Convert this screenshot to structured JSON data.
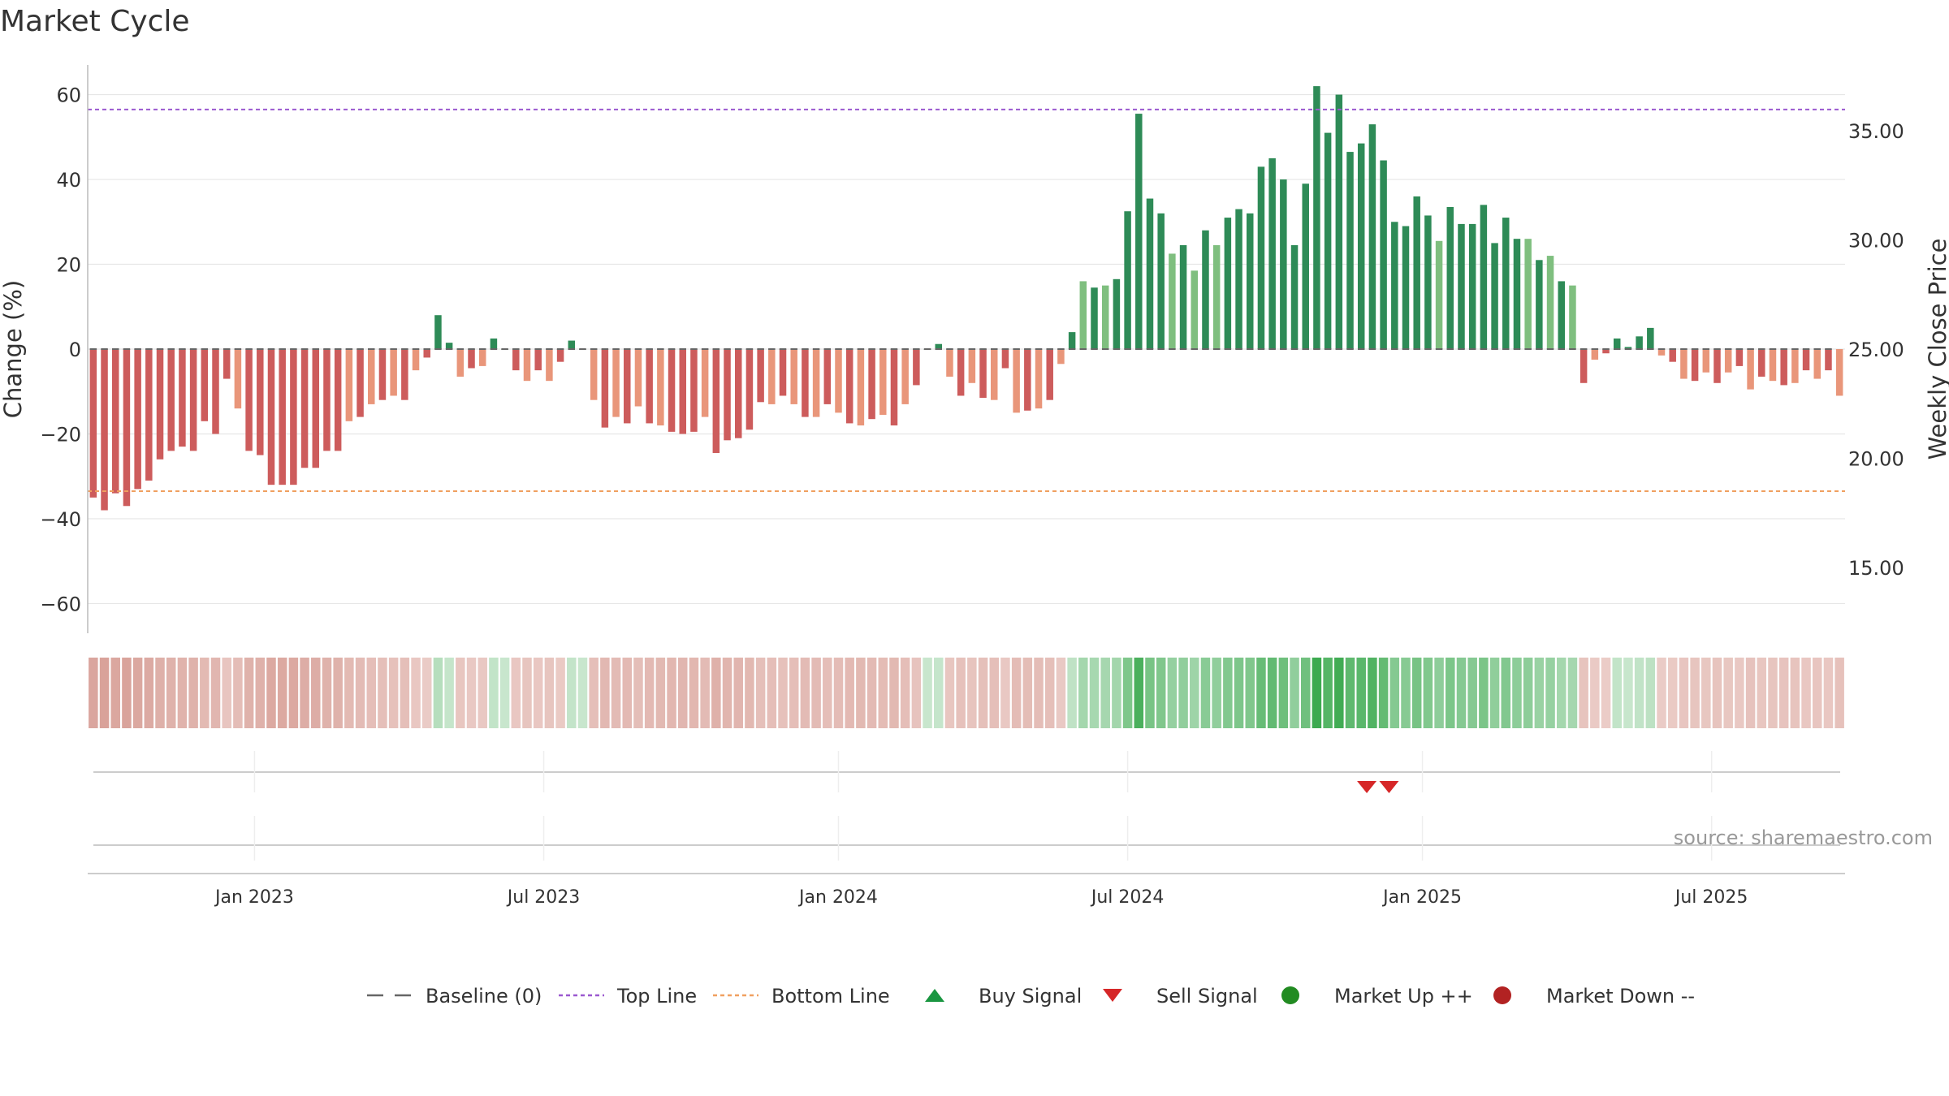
{
  "title": "Market Cycle",
  "source": "source: sharemaestro.com",
  "colors": {
    "strong_up": "#2e8b57",
    "weak_up": "#7fbf7f",
    "strong_down": "#cd5c5c",
    "weak_down": "#e9967a",
    "top_line": "#9b59d0",
    "bottom_line": "#f0a060",
    "baseline": "#666666",
    "buy": "#1a9641",
    "sell": "#d62728",
    "market_up": "#228b22",
    "market_down": "#b22222"
  },
  "chart_data": {
    "type": "bar",
    "title": "Market Cycle",
    "y_left": {
      "label": "Change (%)",
      "lim": [
        -67,
        67
      ],
      "ticks": [
        60,
        40,
        20,
        0,
        -20,
        -40,
        -60
      ],
      "tick_labels": [
        "60",
        "40",
        "20",
        "0",
        "−20",
        "−40",
        "−60"
      ]
    },
    "y_right": {
      "label": "Weekly Close Price",
      "lim": [
        12.0,
        38.0
      ],
      "ticks": [
        35.0,
        30.0,
        25.0,
        20.0,
        15.0
      ],
      "tick_labels": [
        "35.00",
        "30.00",
        "25.00",
        "20.00",
        "15.00"
      ]
    },
    "x_ticks": [
      {
        "label": "Jan 2023",
        "index": 15
      },
      {
        "label": "Jul 2023",
        "index": 41
      },
      {
        "label": "Jan 2024",
        "index": 67.5
      },
      {
        "label": "Jul 2024",
        "index": 93.5
      },
      {
        "label": "Jan 2025",
        "index": 120
      },
      {
        "label": "Jul 2025",
        "index": 146
      }
    ],
    "top_line": 56.5,
    "bottom_line": -33.5,
    "change_values": [
      -35,
      -38,
      -34,
      -37,
      -33,
      -31,
      -26,
      -24,
      -23,
      -24,
      -17,
      -20,
      -7,
      -14,
      -24,
      -25,
      -32,
      -32,
      -32,
      -28,
      -28,
      -24,
      -24,
      -17,
      -16,
      -13,
      -12,
      -11,
      -12,
      -5,
      -2,
      8,
      1.5,
      -6.5,
      -4.5,
      -4,
      2.5,
      0,
      -5,
      -7.5,
      -5,
      -7.5,
      -3,
      2,
      0,
      -12,
      -18.5,
      -16,
      -17.5,
      -13.5,
      -17.5,
      -18,
      -19.5,
      -20,
      -19.5,
      -16,
      -24.5,
      -21.5,
      -21,
      -19,
      -12.5,
      -13,
      -11,
      -13,
      -16,
      -16,
      -13,
      -15,
      -17.5,
      -18,
      -16.5,
      -15.5,
      -18,
      -13,
      -8.5,
      0,
      1.2,
      -6.5,
      -11,
      -8,
      -11.5,
      -12,
      -4.5,
      -15,
      -14.5,
      -14,
      -12,
      -3.5,
      4,
      16,
      14.5,
      15,
      16.5,
      32.5,
      55.5,
      35.5,
      32,
      22.5,
      24.5,
      18.5,
      28,
      24.5,
      31,
      33,
      32,
      43,
      45,
      40,
      24.5,
      39,
      62,
      51,
      60,
      46.5,
      48.5,
      53,
      44.5,
      30,
      29,
      36,
      31.5,
      25.5,
      33.5,
      29.5,
      29.5,
      34,
      25,
      31,
      26,
      26,
      21,
      22,
      16,
      15,
      -8,
      -2.5,
      -1,
      2.5,
      0.5,
      3,
      5,
      -1.5,
      -3,
      -7,
      -7.5,
      -5.5,
      -8,
      -5.5,
      -4,
      -9.5,
      -6.5,
      -7.5,
      -8.5,
      -8,
      -5,
      -7,
      -5,
      -11
    ],
    "price_values": [
      25.0,
      25.0,
      25.0,
      25.0,
      25.0,
      25.0,
      25.0,
      25.0,
      25.0,
      25.0,
      25.0,
      25.0,
      25.0,
      25.0,
      25.0,
      25.0,
      25.0,
      25.0,
      25.0,
      25.0,
      25.0,
      25.0,
      25.0,
      25.0,
      25.0,
      25.0,
      25.0,
      25.0,
      25.0,
      25.0,
      25.0,
      25.0,
      25.0,
      25.0,
      25.0,
      25.0,
      25.0,
      25.0,
      25.0,
      25.0,
      25.0,
      25.0,
      25.0,
      25.0,
      25.0,
      25.0,
      25.0,
      25.0,
      25.0,
      25.0,
      25.0,
      25.0,
      25.0,
      25.0,
      25.0,
      25.0,
      25.0,
      25.0,
      25.0,
      25.0,
      25.0,
      25.0,
      25.0,
      25.0,
      25.0,
      25.0,
      25.0,
      25.0,
      25.0,
      25.0,
      25.0,
      25.0,
      25.0,
      25.0,
      25.0,
      25.0,
      25.0,
      25.0,
      25.0,
      25.0,
      25.0,
      25.0,
      25.0,
      25.0,
      25.0,
      25.0,
      25.0,
      25.0,
      25.0,
      25.0,
      25.0,
      25.0,
      25.0,
      25.0,
      25.0,
      25.0,
      25.0,
      25.0,
      25.0,
      25.0,
      25.0,
      25.0,
      25.0,
      25.0,
      25.0,
      25.0,
      25.0,
      25.0,
      25.0,
      25.0,
      25.0,
      25.0,
      25.0,
      25.0,
      25.0,
      25.0,
      25.0,
      25.0,
      25.0,
      25.0,
      25.0,
      25.0,
      25.0,
      25.0,
      25.0,
      25.0,
      25.0,
      25.0,
      25.0,
      25.0,
      25.0,
      25.0,
      25.0,
      25.0,
      25.0,
      25.0,
      25.0,
      25.0,
      25.0,
      25.0,
      25.0,
      25.0,
      25.0,
      25.0,
      25.0,
      25.0,
      25.0,
      25.0,
      25.0,
      25.0,
      25.0,
      25.0,
      25.0,
      25.0,
      25.0,
      25.0,
      25.0
    ],
    "sell_signal_indices": [
      114,
      116
    ],
    "buy_signal_indices": [],
    "legend": [
      {
        "label": "Baseline (0)",
        "symbol": "dash",
        "color": "#666666"
      },
      {
        "label": "Top Line",
        "symbol": "dot",
        "color": "#9b59d0"
      },
      {
        "label": "Bottom Line",
        "symbol": "dot",
        "color": "#f0a060"
      },
      {
        "label": "Buy Signal",
        "symbol": "triangle-up",
        "color": "#1a9641"
      },
      {
        "label": "Sell Signal",
        "symbol": "triangle-down",
        "color": "#d62728"
      },
      {
        "label": "Market Up ++",
        "symbol": "circle",
        "color": "#228b22"
      },
      {
        "label": "Market Down --",
        "symbol": "circle",
        "color": "#b22222"
      }
    ]
  }
}
